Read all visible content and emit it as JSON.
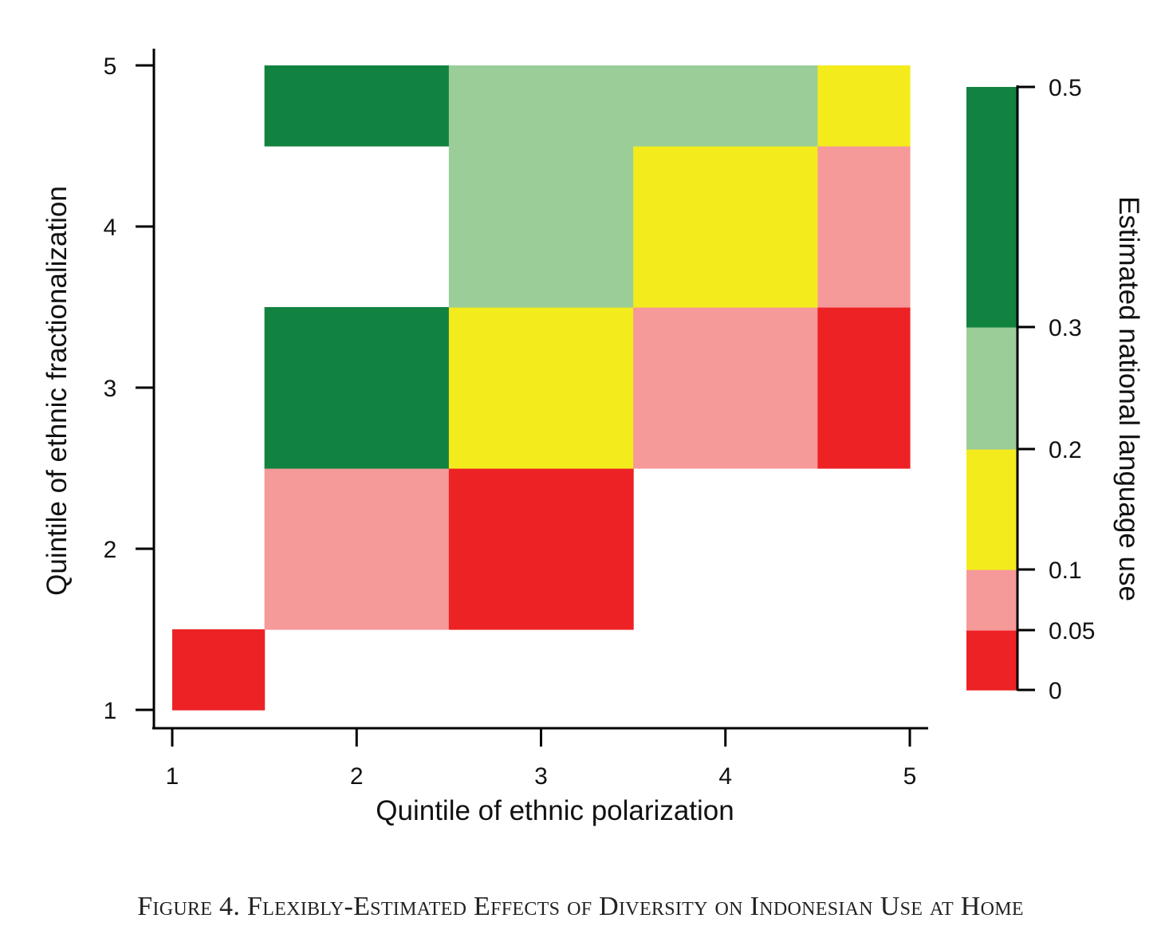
{
  "chart_data": {
    "type": "heatmap",
    "xlabel": "Quintile of ethnic polarization",
    "ylabel": "Quintile of ethnic fractionalization",
    "xticks": [
      1,
      2,
      3,
      4,
      5
    ],
    "yticks": [
      1,
      2,
      3,
      4,
      5
    ],
    "xlim": [
      1,
      5
    ],
    "ylim": [
      1,
      5
    ],
    "cells": [
      {
        "x": 1,
        "y": 1,
        "bin": "0-0.05"
      },
      {
        "x": 2,
        "y": 2,
        "bin": "0.05-0.1"
      },
      {
        "x": 3,
        "y": 2,
        "bin": "0-0.05"
      },
      {
        "x": 2,
        "y": 3,
        "bin": "0.3-0.5"
      },
      {
        "x": 3,
        "y": 3,
        "bin": "0.1-0.2"
      },
      {
        "x": 4,
        "y": 3,
        "bin": "0.05-0.1"
      },
      {
        "x": 5,
        "y": 3,
        "bin": "0-0.05"
      },
      {
        "x": 3,
        "y": 4,
        "bin": "0.2-0.3"
      },
      {
        "x": 4,
        "y": 4,
        "bin": "0.1-0.2"
      },
      {
        "x": 5,
        "y": 4,
        "bin": "0.05-0.1"
      },
      {
        "x": 2,
        "y": 5,
        "bin": "0.3-0.5"
      },
      {
        "x": 3,
        "y": 5,
        "bin": "0.2-0.3"
      },
      {
        "x": 4,
        "y": 5,
        "bin": "0.2-0.3"
      },
      {
        "x": 5,
        "y": 5,
        "bin": "0.1-0.2"
      }
    ],
    "colorbar": {
      "title": "Estimated national language use",
      "ticks": [
        "0",
        "0.05",
        "0.1",
        "0.2",
        "0.3",
        "0.5"
      ],
      "bins": [
        {
          "id": "0-0.05",
          "from": 0,
          "to": 0.05,
          "color": "#ed2224"
        },
        {
          "id": "0.05-0.1",
          "from": 0.05,
          "to": 0.1,
          "color": "#f59999"
        },
        {
          "id": "0.1-0.2",
          "from": 0.1,
          "to": 0.2,
          "color": "#f4eb1c"
        },
        {
          "id": "0.2-0.3",
          "from": 0.2,
          "to": 0.3,
          "color": "#9bcd99"
        },
        {
          "id": "0.3-0.5",
          "from": 0.3,
          "to": 0.5,
          "color": "#128241"
        }
      ]
    }
  },
  "caption": "Figure 4. Flexibly-Estimated Effects of Diversity on Indonesian Use at Home"
}
